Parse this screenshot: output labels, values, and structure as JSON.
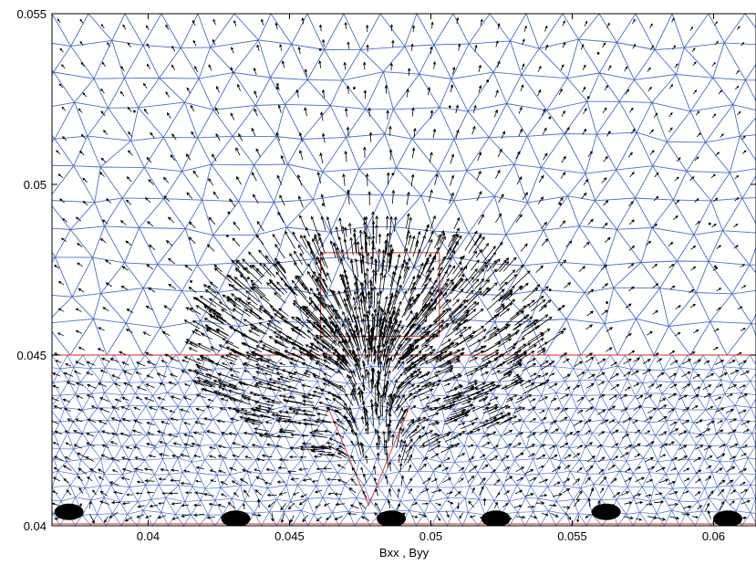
{
  "chart_data": {
    "type": "quiver",
    "title": "",
    "xlabel": "Bxx , Byy",
    "ylabel": "",
    "xlim": [
      0.0366,
      0.0615
    ],
    "ylim": [
      0.04,
      0.055
    ],
    "xticks": [
      0.04,
      0.045,
      0.05,
      0.055,
      0.06
    ],
    "xtick_labels": [
      "0.04",
      "0.045",
      "0.05",
      "0.055",
      "0.06"
    ],
    "yticks": [
      0.04,
      0.045,
      0.05,
      0.055
    ],
    "ytick_labels": [
      "0.04",
      "0.045",
      "0.05",
      "0.055"
    ],
    "grid": false,
    "legend": "none",
    "colors": {
      "mesh": "#4a6fc9",
      "boundary": "#e0504a",
      "arrows": "#000000",
      "axes": "#000000"
    },
    "geometry": {
      "interface_y": 0.045,
      "bottom_y": 0.04,
      "magnet_rect": {
        "x0": 0.0461,
        "x1": 0.0503,
        "y0": 0.04555,
        "y1": 0.048
      },
      "v_groove": {
        "left": [
          0.04635,
          0.0435
        ],
        "apex": [
          0.0478,
          0.0406
        ],
        "right": [
          0.04925,
          0.0435
        ]
      }
    },
    "field": {
      "source": [
        0.0479,
        0.0465
      ],
      "sinks": [
        [
          0.0372,
          0.0403
        ],
        [
          0.0431,
          0.0401
        ],
        [
          0.0486,
          0.0401
        ],
        [
          0.0523,
          0.0401
        ],
        [
          0.0562,
          0.0403
        ],
        [
          0.0605,
          0.0401
        ]
      ]
    }
  }
}
